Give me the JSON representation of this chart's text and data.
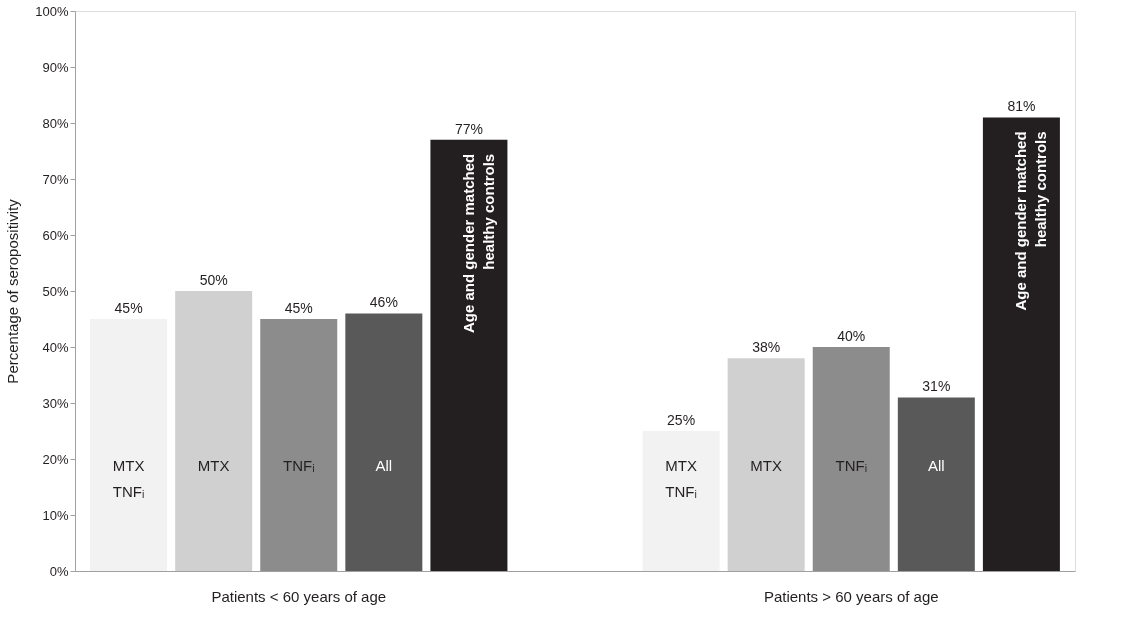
{
  "chart_data": {
    "type": "bar",
    "ylabel": "Percentage of seropositivity",
    "categories": [
      "Patients < 60 years of age",
      "Patients > 60 years of age"
    ],
    "series": [
      {
        "name": "MTX\nTNFᵢ",
        "color": "#f2f2f2",
        "values": [
          45,
          25
        ],
        "value_labels": [
          "45%",
          "25%"
        ]
      },
      {
        "name": "MTX",
        "color": "#d0d0d0",
        "values": [
          50,
          38
        ],
        "value_labels": [
          "50%",
          "38%"
        ]
      },
      {
        "name": "TNFᵢ",
        "color": "#8c8c8c",
        "values": [
          45,
          40
        ],
        "value_labels": [
          "45%",
          "40%"
        ]
      },
      {
        "name": "All",
        "color": "#595959",
        "values": [
          46,
          31
        ],
        "value_labels": [
          "46%",
          "31%"
        ]
      },
      {
        "name": "Age and gender matched\nhealthy controls",
        "color": "#231f20",
        "values": [
          77,
          81
        ],
        "value_labels": [
          "77%",
          "81%"
        ]
      }
    ],
    "ylim": [
      0,
      100
    ],
    "yticks": [
      {
        "value": 0,
        "label": "0%"
      },
      {
        "value": 10,
        "label": "10%"
      },
      {
        "value": 20,
        "label": "20%"
      },
      {
        "value": 30,
        "label": "30%"
      },
      {
        "value": 40,
        "label": "40%"
      },
      {
        "value": 50,
        "label": "50%"
      },
      {
        "value": 60,
        "label": "60%"
      },
      {
        "value": 70,
        "label": "70%"
      },
      {
        "value": 80,
        "label": "80%"
      },
      {
        "value": 90,
        "label": "90%"
      },
      {
        "value": 100,
        "label": "100%"
      }
    ],
    "grid": false,
    "legend": false
  }
}
